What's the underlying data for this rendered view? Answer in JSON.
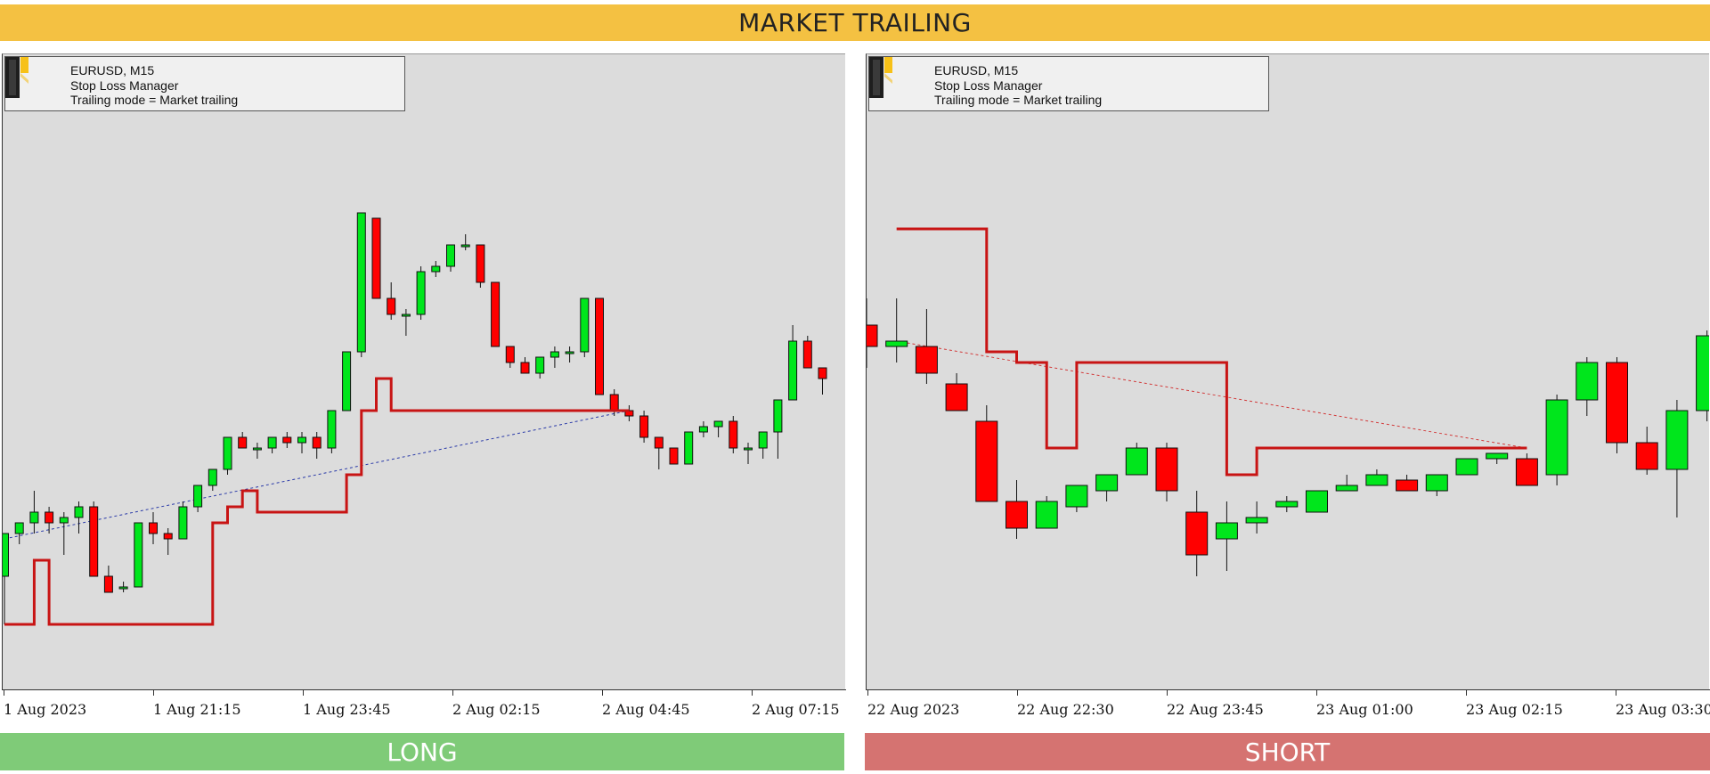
{
  "banner": {
    "title": "MARKET TRAILING"
  },
  "colors": {
    "banner": "#f4c142",
    "long": "#7fcb78",
    "short": "#d57371",
    "bull": "#00e61c",
    "bear": "#ff0000",
    "stop_line": "#c81414",
    "plot_bg": "#dcdcdc"
  },
  "charts": [
    {
      "footer": "LONG",
      "info": {
        "line1": "EURUSD, M15",
        "line2": "Stop Loss Manager",
        "line3": "Trailing mode = Market trailing"
      },
      "xticks": [
        "1 Aug 2023",
        "1 Aug 21:15",
        "1 Aug 23:45",
        "2 Aug 02:15",
        "2 Aug 04:45",
        "2 Aug 07:15"
      ]
    },
    {
      "footer": "SHORT",
      "info": {
        "line1": "EURUSD, M15",
        "line2": "Stop Loss Manager",
        "line3": "Trailing mode = Market trailing"
      },
      "xticks": [
        "22 Aug 2023",
        "22 Aug 22:30",
        "22 Aug 23:45",
        "23 Aug 01:00",
        "23 Aug 02:15",
        "23 Aug 03:30"
      ]
    }
  ],
  "chart_data": [
    {
      "type": "candlestick",
      "title": "EURUSD, M15",
      "direction": "long",
      "x_start": "1 Aug 2023",
      "ylim": [
        0,
        100
      ],
      "candles": [
        {
          "o": 14,
          "h": 22,
          "l": 5,
          "c": 22
        },
        {
          "o": 22,
          "h": 24,
          "l": 20,
          "c": 24
        },
        {
          "o": 24,
          "h": 30,
          "l": 22,
          "c": 26
        },
        {
          "o": 26,
          "h": 27,
          "l": 22,
          "c": 24
        },
        {
          "o": 24,
          "h": 26,
          "l": 18,
          "c": 25
        },
        {
          "o": 25,
          "h": 28,
          "l": 22,
          "c": 27
        },
        {
          "o": 27,
          "h": 28,
          "l": 15,
          "c": 14
        },
        {
          "o": 14,
          "h": 16,
          "l": 11,
          "c": 11
        },
        {
          "o": 12,
          "h": 13,
          "l": 11,
          "c": 12
        },
        {
          "o": 12,
          "h": 24,
          "l": 12,
          "c": 24
        },
        {
          "o": 24,
          "h": 26,
          "l": 20,
          "c": 22
        },
        {
          "o": 22,
          "h": 23,
          "l": 18,
          "c": 21
        },
        {
          "o": 21,
          "h": 28,
          "l": 21,
          "c": 27
        },
        {
          "o": 27,
          "h": 31,
          "l": 26,
          "c": 31
        },
        {
          "o": 31,
          "h": 34,
          "l": 30,
          "c": 34
        },
        {
          "o": 34,
          "h": 40,
          "l": 33,
          "c": 40
        },
        {
          "o": 40,
          "h": 41,
          "l": 38,
          "c": 38
        },
        {
          "o": 38,
          "h": 39,
          "l": 36,
          "c": 38
        },
        {
          "o": 38,
          "h": 40,
          "l": 37,
          "c": 40
        },
        {
          "o": 40,
          "h": 41,
          "l": 38,
          "c": 39
        },
        {
          "o": 39,
          "h": 41,
          "l": 37,
          "c": 40
        },
        {
          "o": 40,
          "h": 41,
          "l": 36,
          "c": 38
        },
        {
          "o": 38,
          "h": 45,
          "l": 37,
          "c": 45
        },
        {
          "o": 45,
          "h": 56,
          "l": 45,
          "c": 56
        },
        {
          "o": 56,
          "h": 82,
          "l": 55,
          "c": 82
        },
        {
          "o": 81,
          "h": 81,
          "l": 66,
          "c": 66
        },
        {
          "o": 66,
          "h": 69,
          "l": 62,
          "c": 63
        },
        {
          "o": 63,
          "h": 64,
          "l": 59,
          "c": 63
        },
        {
          "o": 63,
          "h": 72,
          "l": 62,
          "c": 71
        },
        {
          "o": 71,
          "h": 73,
          "l": 70,
          "c": 72
        },
        {
          "o": 72,
          "h": 76,
          "l": 71,
          "c": 76
        },
        {
          "o": 76,
          "h": 78,
          "l": 75,
          "c": 76
        },
        {
          "o": 76,
          "h": 76,
          "l": 68,
          "c": 69
        },
        {
          "o": 69,
          "h": 69,
          "l": 57,
          "c": 57
        },
        {
          "o": 57,
          "h": 57,
          "l": 53,
          "c": 54
        },
        {
          "o": 54,
          "h": 55,
          "l": 52,
          "c": 52
        },
        {
          "o": 52,
          "h": 55,
          "l": 51,
          "c": 55
        },
        {
          "o": 55,
          "h": 57,
          "l": 53,
          "c": 56
        },
        {
          "o": 56,
          "h": 57,
          "l": 54,
          "c": 56
        },
        {
          "o": 56,
          "h": 66,
          "l": 55,
          "c": 66
        },
        {
          "o": 66,
          "h": 66,
          "l": 48,
          "c": 48
        },
        {
          "o": 48,
          "h": 49,
          "l": 44,
          "c": 45
        },
        {
          "o": 45,
          "h": 46,
          "l": 43,
          "c": 44
        },
        {
          "o": 44,
          "h": 45,
          "l": 39,
          "c": 40
        },
        {
          "o": 40,
          "h": 40,
          "l": 34,
          "c": 38
        },
        {
          "o": 38,
          "h": 38,
          "l": 35,
          "c": 35
        },
        {
          "o": 35,
          "h": 41,
          "l": 35,
          "c": 41
        },
        {
          "o": 41,
          "h": 43,
          "l": 40,
          "c": 42
        },
        {
          "o": 42,
          "h": 43,
          "l": 40,
          "c": 43
        },
        {
          "o": 43,
          "h": 44,
          "l": 37,
          "c": 38
        },
        {
          "o": 38,
          "h": 39,
          "l": 35,
          "c": 38
        },
        {
          "o": 38,
          "h": 41,
          "l": 36,
          "c": 41
        },
        {
          "o": 41,
          "h": 47,
          "l": 36,
          "c": 47
        },
        {
          "o": 47,
          "h": 61,
          "l": 47,
          "c": 58
        },
        {
          "o": 58,
          "h": 59,
          "l": 53,
          "c": 53
        },
        {
          "o": 53,
          "h": 53,
          "l": 48,
          "c": 51
        }
      ],
      "stop_loss": [
        [
          0,
          5
        ],
        [
          2,
          5
        ],
        [
          2,
          17
        ],
        [
          3,
          17
        ],
        [
          3,
          5
        ],
        [
          14,
          5
        ],
        [
          14,
          24
        ],
        [
          15,
          24
        ],
        [
          15,
          27
        ],
        [
          16,
          27
        ],
        [
          16,
          30
        ],
        [
          17,
          30
        ],
        [
          17,
          26
        ],
        [
          23,
          26
        ],
        [
          23,
          33
        ],
        [
          24,
          33
        ],
        [
          24,
          45
        ],
        [
          25,
          45
        ],
        [
          25,
          51
        ],
        [
          26,
          51
        ],
        [
          26,
          45
        ],
        [
          42,
          45
        ]
      ],
      "entry_line": [
        [
          0,
          21
        ],
        [
          42,
          45
        ]
      ]
    },
    {
      "type": "candlestick",
      "title": "EURUSD, M15",
      "direction": "short",
      "x_start": "22 Aug 2023",
      "ylim": [
        0,
        100
      ],
      "candles": [
        {
          "o": 61,
          "h": 66,
          "l": 53,
          "c": 57
        },
        {
          "o": 57,
          "h": 66,
          "l": 54,
          "c": 58
        },
        {
          "o": 57,
          "h": 64,
          "l": 50,
          "c": 52
        },
        {
          "o": 50,
          "h": 52,
          "l": 45,
          "c": 45
        },
        {
          "o": 43,
          "h": 46,
          "l": 28,
          "c": 28
        },
        {
          "o": 28,
          "h": 32,
          "l": 21,
          "c": 23
        },
        {
          "o": 23,
          "h": 29,
          "l": 24,
          "c": 28
        },
        {
          "o": 27,
          "h": 31,
          "l": 26,
          "c": 31
        },
        {
          "o": 30,
          "h": 33,
          "l": 28,
          "c": 33
        },
        {
          "o": 33,
          "h": 39,
          "l": 33,
          "c": 38
        },
        {
          "o": 38,
          "h": 39,
          "l": 28,
          "c": 30
        },
        {
          "o": 26,
          "h": 30,
          "l": 14,
          "c": 18
        },
        {
          "o": 21,
          "h": 28,
          "l": 15,
          "c": 24
        },
        {
          "o": 24,
          "h": 28,
          "l": 22,
          "c": 25
        },
        {
          "o": 27,
          "h": 29,
          "l": 26,
          "c": 28
        },
        {
          "o": 26,
          "h": 30,
          "l": 26,
          "c": 30
        },
        {
          "o": 30,
          "h": 33,
          "l": 30,
          "c": 31
        },
        {
          "o": 31,
          "h": 34,
          "l": 31,
          "c": 33
        },
        {
          "o": 32,
          "h": 33,
          "l": 30,
          "c": 30
        },
        {
          "o": 30,
          "h": 33,
          "l": 29,
          "c": 33
        },
        {
          "o": 33,
          "h": 36,
          "l": 33,
          "c": 36
        },
        {
          "o": 36,
          "h": 37,
          "l": 35,
          "c": 37
        },
        {
          "o": 36,
          "h": 37,
          "l": 31,
          "c": 31
        },
        {
          "o": 33,
          "h": 48,
          "l": 31,
          "c": 47
        },
        {
          "o": 47,
          "h": 55,
          "l": 44,
          "c": 54
        },
        {
          "o": 54,
          "h": 55,
          "l": 37,
          "c": 39
        },
        {
          "o": 39,
          "h": 42,
          "l": 33,
          "c": 34
        },
        {
          "o": 34,
          "h": 47,
          "l": 25,
          "c": 45
        },
        {
          "o": 45,
          "h": 60,
          "l": 43,
          "c": 59
        }
      ],
      "stop_loss": [
        [
          1,
          79
        ],
        [
          4,
          79
        ],
        [
          4,
          56
        ],
        [
          5,
          56
        ],
        [
          5,
          54
        ],
        [
          6,
          54
        ],
        [
          6,
          38
        ],
        [
          7,
          38
        ],
        [
          7,
          54
        ],
        [
          12,
          54
        ],
        [
          12,
          33
        ],
        [
          13,
          33
        ],
        [
          13,
          38
        ],
        [
          22,
          38
        ]
      ],
      "entry_line": [
        [
          1,
          58
        ],
        [
          22,
          38
        ]
      ]
    }
  ]
}
